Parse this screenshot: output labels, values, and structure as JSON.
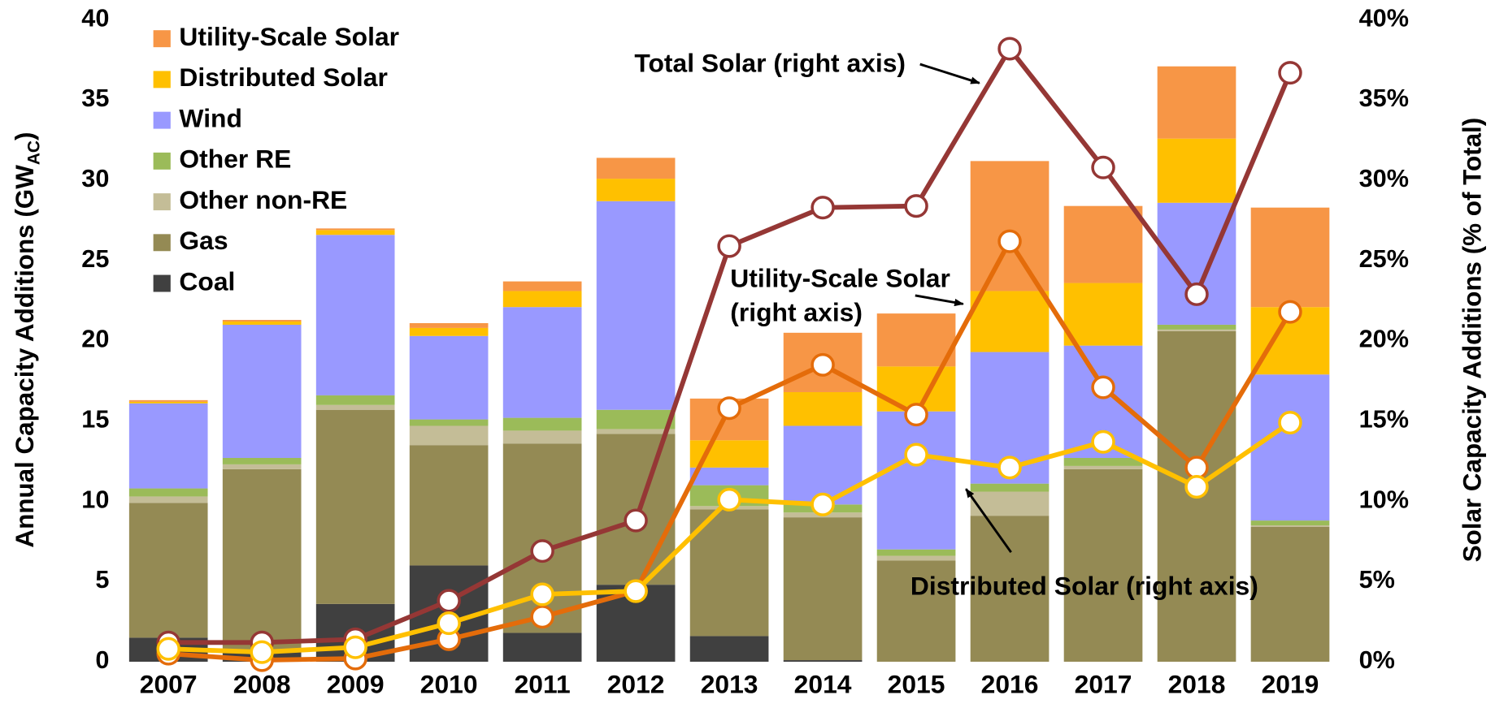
{
  "chart_data": {
    "type": "bar",
    "stacked": true,
    "y_label": "Annual Capacity Additions (GW",
    "y_label_sub": "AC",
    "y_label_end": ")",
    "y2_label": "Solar Capacity Additions (% of Total)",
    "categories": [
      "2007",
      "2008",
      "2009",
      "2010",
      "2011",
      "2012",
      "2013",
      "2014",
      "2015",
      "2016",
      "2017",
      "2018",
      "2019"
    ],
    "ylim": [
      0,
      40
    ],
    "yticks": [
      0,
      5,
      10,
      15,
      20,
      25,
      30,
      35,
      40
    ],
    "y2lim": [
      0,
      40
    ],
    "y2ticks": [
      {
        "value": 0,
        "label": "0%"
      },
      {
        "value": 5,
        "label": "5%"
      },
      {
        "value": 10,
        "label": "10%"
      },
      {
        "value": 15,
        "label": "15%"
      },
      {
        "value": 20,
        "label": "20%"
      },
      {
        "value": 25,
        "label": "25%"
      },
      {
        "value": 30,
        "label": "30%"
      },
      {
        "value": 35,
        "label": "35%"
      },
      {
        "value": 40,
        "label": "40%"
      }
    ],
    "legend": "top-left",
    "series": [
      {
        "name": "Coal",
        "color": "#404040",
        "values": [
          1.5,
          0.6,
          3.6,
          6.0,
          1.8,
          4.8,
          1.6,
          0.1,
          0,
          0,
          0,
          0,
          0
        ]
      },
      {
        "name": "Gas",
        "color": "#948a54",
        "values": [
          8.4,
          11.4,
          12.1,
          7.5,
          11.8,
          9.4,
          7.9,
          8.9,
          6.3,
          9.1,
          12.0,
          20.6,
          8.4
        ]
      },
      {
        "name": "Other non-RE",
        "color": "#c4bd97",
        "values": [
          0.4,
          0.3,
          0.3,
          1.2,
          0.8,
          0.3,
          0.2,
          0.3,
          0.3,
          1.5,
          0.2,
          0.1,
          0.1
        ]
      },
      {
        "name": "Other RE",
        "color": "#9bbb59",
        "values": [
          0.5,
          0.4,
          0.6,
          0.4,
          0.8,
          1.2,
          1.3,
          0.5,
          0.4,
          0.5,
          0.5,
          0.3,
          0.3
        ]
      },
      {
        "name": "Wind",
        "color": "#9999ff",
        "values": [
          5.3,
          8.3,
          10.0,
          5.2,
          6.9,
          13.0,
          1.1,
          4.9,
          8.6,
          8.2,
          7.0,
          7.6,
          9.1
        ]
      },
      {
        "name": "Distributed Solar",
        "color": "#ffc000",
        "values": [
          0.1,
          0.2,
          0.3,
          0.5,
          1.0,
          1.4,
          1.7,
          2.1,
          2.8,
          3.8,
          3.9,
          4.0,
          4.2
        ]
      },
      {
        "name": "Utility-Scale Solar",
        "color": "#f79646",
        "values": [
          0.1,
          0.1,
          0.1,
          0.3,
          0.6,
          1.3,
          2.6,
          3.7,
          3.3,
          8.1,
          4.8,
          4.5,
          6.2
        ]
      }
    ],
    "lines": [
      {
        "label_lines": [
          "Total Solar (right axis)"
        ],
        "color": "#953735",
        "axis": "y2",
        "values": [
          1.2,
          1.2,
          1.4,
          3.8,
          6.9,
          8.8,
          25.9,
          28.3,
          28.4,
          38.2,
          30.8,
          22.9,
          36.7
        ]
      },
      {
        "label_lines": [
          "Utility-Scale Solar",
          "(right axis)"
        ],
        "color": "#e46c0a",
        "axis": "y2",
        "values": [
          0.5,
          0.1,
          0.2,
          1.4,
          2.8,
          4.4,
          15.8,
          18.5,
          15.4,
          26.2,
          17.1,
          12.1,
          21.8
        ]
      },
      {
        "label_lines": [
          "Distributed Solar (right axis)"
        ],
        "color": "#ffc000",
        "axis": "y2",
        "values": [
          0.8,
          0.6,
          0.9,
          2.4,
          4.2,
          4.4,
          10.1,
          9.8,
          12.9,
          12.1,
          13.7,
          10.9,
          14.9
        ]
      }
    ]
  }
}
